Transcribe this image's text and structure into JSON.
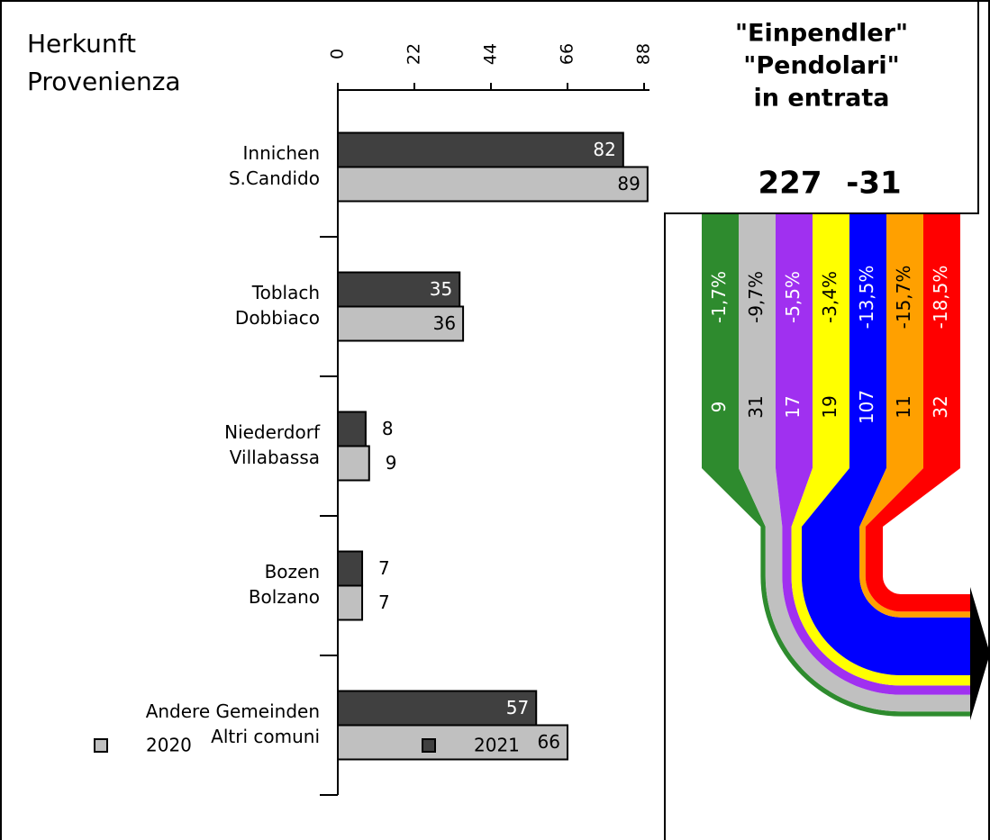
{
  "chart_data": {
    "type": "bar",
    "orientation": "horizontal",
    "title_lines": [
      "Herkunft",
      "Provenienza"
    ],
    "categories": [
      [
        "Innichen",
        "S.Candido"
      ],
      [
        "Toblach",
        "Dobbiaco"
      ],
      [
        "Niederdorf",
        "Villabassa"
      ],
      [
        "Bozen",
        "Bolzano"
      ],
      [
        "Andere Gemeinden",
        "Altri comuni"
      ]
    ],
    "series": [
      {
        "name": "2020",
        "color": "#c0c0c0",
        "values": [
          89,
          36,
          9,
          7,
          66
        ]
      },
      {
        "name": "2021",
        "color": "#404040",
        "values": [
          82,
          35,
          8,
          7,
          57
        ]
      }
    ],
    "xlim": [
      0,
      88
    ],
    "xticks": [
      0,
      22,
      44,
      66,
      88
    ]
  },
  "flow": {
    "type": "sankey",
    "title_lines": [
      "\"Einpendler\"",
      "\"Pendolari\"",
      "in entrata"
    ],
    "total": 227,
    "total_change": -31,
    "values": [
      9,
      31,
      17,
      19,
      107,
      11,
      32
    ],
    "changes": [
      -1.7,
      -9.7,
      -5.5,
      -3.4,
      -13.5,
      -15.7,
      -18.5
    ],
    "change_labels": [
      "-1,7%",
      "-9,7%",
      "-5,5%",
      "-3,4%",
      "-13,5%",
      "-15,7%",
      "-18,5%"
    ],
    "colors": [
      "#2e8b2e",
      "#c0c0c0",
      "#a030f0",
      "#ffff00",
      "#0000ff",
      "#ffa000",
      "#ff0000"
    ]
  }
}
